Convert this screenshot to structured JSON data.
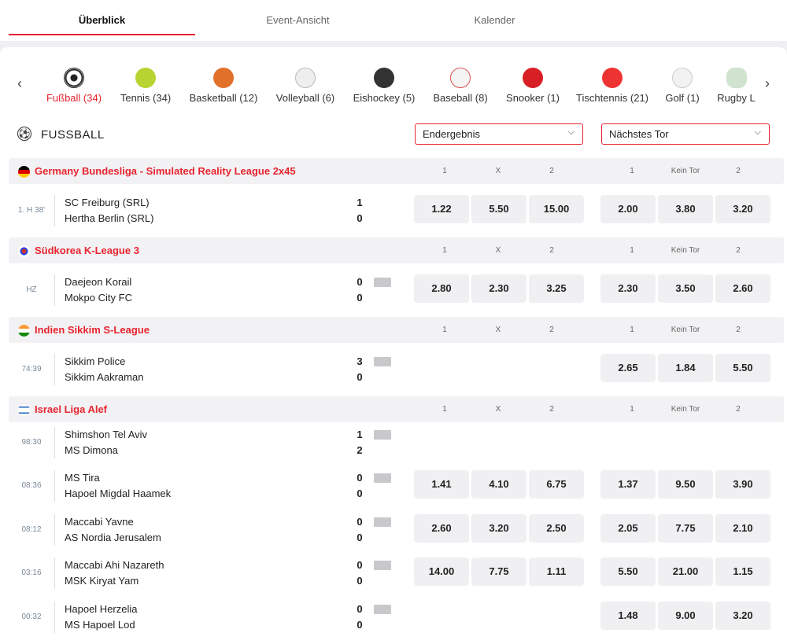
{
  "tabs": [
    {
      "label": "Überblick",
      "active": true
    },
    {
      "label": "Event-Ansicht",
      "active": false
    },
    {
      "label": "Kalender",
      "active": false
    }
  ],
  "sports": [
    {
      "label": "Fußball (34)",
      "icon": "soccer-ball-icon",
      "active": true
    },
    {
      "label": "Tennis (34)",
      "icon": "tennis-ball-icon"
    },
    {
      "label": "Basketball (12)",
      "icon": "basketball-icon"
    },
    {
      "label": "Volleyball (6)",
      "icon": "volleyball-icon"
    },
    {
      "label": "Eishockey (5)",
      "icon": "hockey-puck-icon"
    },
    {
      "label": "Baseball (8)",
      "icon": "baseball-icon"
    },
    {
      "label": "Snooker (1)",
      "icon": "snooker-ball-icon"
    },
    {
      "label": "Tischtennis (21)",
      "icon": "table-tennis-icon"
    },
    {
      "label": "Golf (1)",
      "icon": "golf-ball-icon"
    },
    {
      "label": "Rugby L",
      "icon": "rugby-ball-icon"
    }
  ],
  "section": {
    "title": "FUSSBALL",
    "market1": "Endergebnis",
    "market2": "Nächstes Tor"
  },
  "columns": {
    "m1": [
      "1",
      "X",
      "2"
    ],
    "m2": [
      "1",
      "Kein Tor",
      "2"
    ]
  },
  "leagues": [
    {
      "name": "Germany Bundesliga - Simulated Reality League 2x45",
      "flag": "germany-flag-icon",
      "matches": [
        {
          "time": "1. H 38'",
          "home": "SC Freiburg (SRL)",
          "away": "Hertha Berlin (SRL)",
          "score_home": "1",
          "score_away": "0",
          "odds1": [
            "1.22",
            "5.50",
            "15.00"
          ],
          "odds2": [
            "2.00",
            "3.80",
            "3.20"
          ]
        }
      ]
    },
    {
      "name": "Südkorea K-League 3",
      "flag": "south-korea-flag-icon",
      "matches": [
        {
          "time": "HZ",
          "home": "Daejeon Korail",
          "away": "Mokpo City FC",
          "score_home": "0",
          "score_away": "0",
          "odds1": [
            "2.80",
            "2.30",
            "3.25"
          ],
          "odds2": [
            "2.30",
            "3.50",
            "2.60"
          ]
        }
      ]
    },
    {
      "name": "Indien Sikkim S-League",
      "flag": "india-flag-icon",
      "matches": [
        {
          "time": "74:39",
          "home": "Sikkim Police",
          "away": "Sikkim Aakraman",
          "score_home": "3",
          "score_away": "0",
          "odds1": [],
          "odds2": [
            "2.65",
            "1.84",
            "5.50"
          ]
        }
      ]
    },
    {
      "name": "Israel Liga Alef",
      "flag": "israel-flag-icon",
      "matches": [
        {
          "time": "98:30",
          "home": "Shimshon Tel Aviv",
          "away": "MS Dimona",
          "score_home": "1",
          "score_away": "2",
          "odds1": [],
          "odds2": []
        },
        {
          "time": "08:36",
          "home": "MS Tira",
          "away": "Hapoel Migdal Haamek",
          "score_home": "0",
          "score_away": "0",
          "odds1": [
            "1.41",
            "4.10",
            "6.75"
          ],
          "odds2": [
            "1.37",
            "9.50",
            "3.90"
          ]
        },
        {
          "time": "08:12",
          "home": "Maccabi Yavne",
          "away": "AS Nordia Jerusalem",
          "score_home": "0",
          "score_away": "0",
          "odds1": [
            "2.60",
            "3.20",
            "2.50"
          ],
          "odds2": [
            "2.05",
            "7.75",
            "2.10"
          ]
        },
        {
          "time": "03:16",
          "home": "Maccabi Ahi Nazareth",
          "away": "MSK Kiryat Yam",
          "score_home": "0",
          "score_away": "0",
          "odds1": [
            "14.00",
            "7.75",
            "1.11"
          ],
          "odds2": [
            "5.50",
            "21.00",
            "1.15"
          ]
        },
        {
          "time": "00:32",
          "home": "Hapoel Herzelia",
          "away": "MS Hapoel Lod",
          "score_home": "0",
          "score_away": "0",
          "odds1": [],
          "odds2": [
            "1.48",
            "9.00",
            "3.20"
          ]
        }
      ]
    }
  ]
}
